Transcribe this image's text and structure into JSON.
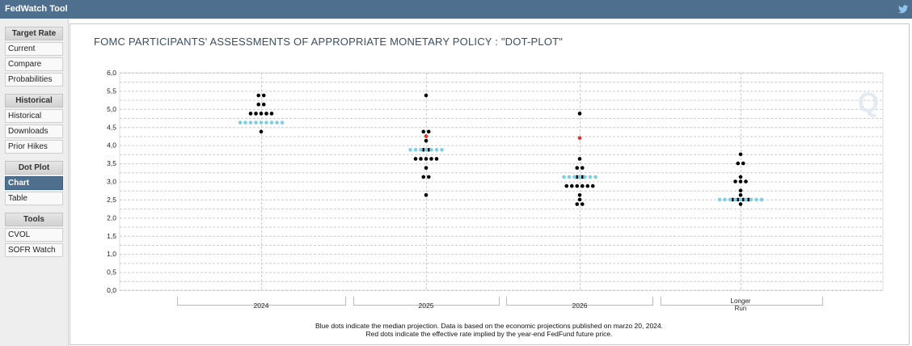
{
  "app": {
    "title": "FedWatch Tool",
    "twitter_icon": "twitter-icon"
  },
  "sidebar": {
    "sections": [
      {
        "label": "Target Rate",
        "items": [
          "Current",
          "Compare",
          "Probabilities"
        ]
      },
      {
        "label": "Historical",
        "items": [
          "Historical",
          "Downloads",
          "Prior Hikes"
        ]
      },
      {
        "label": "Dot Plot",
        "items": [
          "Chart",
          "Table"
        ]
      },
      {
        "label": "Tools",
        "items": [
          "CVOL",
          "SOFR Watch"
        ]
      }
    ],
    "active_item": "Chart"
  },
  "chart_data": {
    "type": "scatter",
    "title": "FOMC PARTICIPANTS' ASSESSMENTS OF APPROPRIATE MONETARY POLICY : \"DOT-PLOT\"",
    "categories": [
      "2024",
      "2025",
      "2026",
      "Longer Run"
    ],
    "ylim": [
      0,
      6
    ],
    "yticks": [
      "0,0",
      "0,5",
      "1,0",
      "1,5",
      "2,0",
      "2,5",
      "3,0",
      "3,5",
      "4,0",
      "4,5",
      "5,0",
      "5,5",
      "6,0"
    ],
    "grid": true,
    "colors": {
      "participant": "#000000",
      "median": "#7ecfe6",
      "futures": "#e8302a"
    },
    "series": [
      {
        "role": "participants",
        "points": [
          {
            "category": "2024",
            "rate": 5.375,
            "count": 2
          },
          {
            "category": "2024",
            "rate": 5.125,
            "count": 2
          },
          {
            "category": "2024",
            "rate": 4.875,
            "count": 5
          },
          {
            "category": "2024",
            "rate": 4.375,
            "count": 1
          },
          {
            "category": "2025",
            "rate": 5.375,
            "count": 1
          },
          {
            "category": "2025",
            "rate": 4.375,
            "count": 2
          },
          {
            "category": "2025",
            "rate": 4.125,
            "count": 1
          },
          {
            "category": "2025",
            "rate": 3.875,
            "count": 2
          },
          {
            "category": "2025",
            "rate": 3.625,
            "count": 5
          },
          {
            "category": "2025",
            "rate": 3.375,
            "count": 1
          },
          {
            "category": "2025",
            "rate": 3.125,
            "count": 2
          },
          {
            "category": "2025",
            "rate": 2.625,
            "count": 1
          },
          {
            "category": "2026",
            "rate": 4.875,
            "count": 1
          },
          {
            "category": "2026",
            "rate": 3.625,
            "count": 1
          },
          {
            "category": "2026",
            "rate": 3.375,
            "count": 2
          },
          {
            "category": "2026",
            "rate": 3.125,
            "count": 2
          },
          {
            "category": "2026",
            "rate": 2.875,
            "count": 6
          },
          {
            "category": "2026",
            "rate": 2.625,
            "count": 1
          },
          {
            "category": "2026",
            "rate": 2.5,
            "count": 1
          },
          {
            "category": "2026",
            "rate": 2.375,
            "count": 2
          },
          {
            "category": "Longer Run",
            "rate": 3.75,
            "count": 1
          },
          {
            "category": "Longer Run",
            "rate": 3.5,
            "count": 2
          },
          {
            "category": "Longer Run",
            "rate": 3.125,
            "count": 1
          },
          {
            "category": "Longer Run",
            "rate": 3.0,
            "count": 3
          },
          {
            "category": "Longer Run",
            "rate": 2.75,
            "count": 1
          },
          {
            "category": "Longer Run",
            "rate": 2.625,
            "count": 1
          },
          {
            "category": "Longer Run",
            "rate": 2.5,
            "count": 4
          },
          {
            "category": "Longer Run",
            "rate": 2.375,
            "count": 1
          }
        ]
      },
      {
        "role": "median",
        "points": [
          {
            "category": "2024",
            "rate": 4.625,
            "count": 9
          },
          {
            "category": "2025",
            "rate": 3.875,
            "count": 7
          },
          {
            "category": "2026",
            "rate": 3.125,
            "count": 7
          },
          {
            "category": "Longer Run",
            "rate": 2.5,
            "count": 9
          }
        ]
      },
      {
        "role": "futures",
        "points": [
          {
            "category": "2025",
            "rate": 4.25,
            "count": 1
          },
          {
            "category": "2026",
            "rate": 4.2,
            "count": 1
          }
        ]
      }
    ]
  },
  "labels": {
    "longer_run_line1": "Longer",
    "longer_run_line2": "Run"
  },
  "notes": {
    "line1": "Blue dots indicate the median projection. Data is based on the economic projections published on marzo 20, 2024.",
    "line2": "Red dots indicate the effective rate implied by the year-end FedFund future price."
  },
  "watermark": {
    "letter": "Q"
  }
}
